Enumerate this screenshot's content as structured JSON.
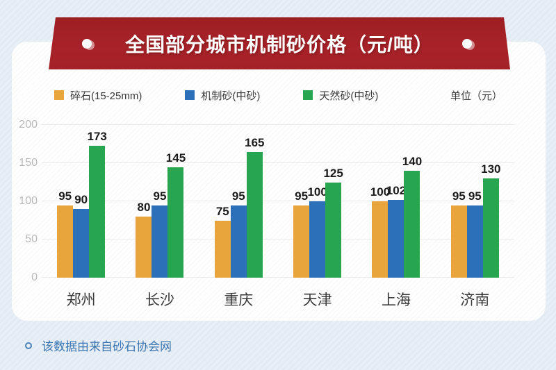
{
  "banner": {
    "title": "全国部分城市机制砂价格（元/吨）",
    "ribbon_color": "#a32127"
  },
  "legend": {
    "items": [
      {
        "label": "碎石(15-25mm)",
        "color": "#e8a53c"
      },
      {
        "label": "机制砂(中砂)",
        "color": "#2c70b9"
      },
      {
        "label": "天然砂(中砂)",
        "color": "#27a551"
      }
    ],
    "unit_label": "单位（元）"
  },
  "chart_data": {
    "type": "bar",
    "title": "全国部分城市机制砂价格（元/吨）",
    "categories": [
      "郑州",
      "长沙",
      "重庆",
      "天津",
      "上海",
      "济南"
    ],
    "series": [
      {
        "name": "碎石(15-25mm)",
        "color": "#e8a53c",
        "values": [
          95,
          80,
          75,
          95,
          100,
          95
        ]
      },
      {
        "name": "机制砂(中砂)",
        "color": "#2c70b9",
        "values": [
          90,
          95,
          95,
          100,
          102,
          95
        ]
      },
      {
        "name": "天然砂(中砂)",
        "color": "#27a551",
        "values": [
          173,
          145,
          165,
          125,
          140,
          130
        ]
      }
    ],
    "xlabel": "",
    "ylabel": "",
    "ylim": [
      0,
      200
    ],
    "yticks": [
      0,
      50,
      100,
      150,
      200
    ],
    "grid": true,
    "legend_position": "top",
    "value_labels": true
  },
  "footer": {
    "note": "该数据由来自砂石协会网"
  }
}
